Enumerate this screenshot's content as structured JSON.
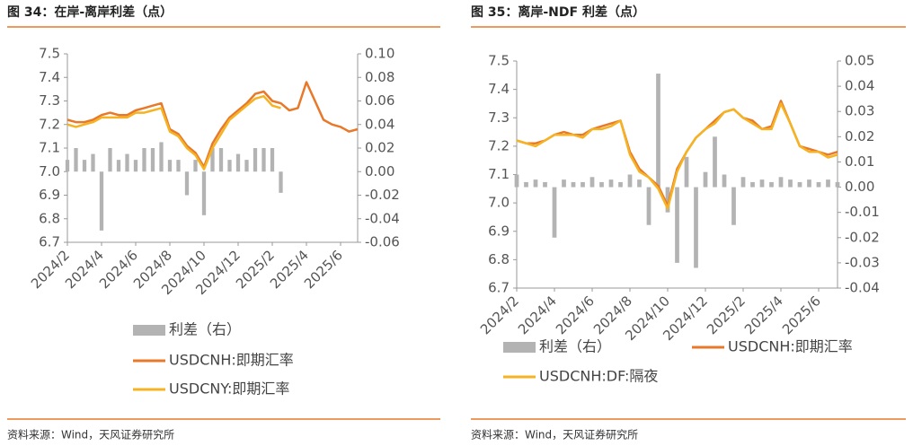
{
  "chart_data": [
    {
      "type": "line",
      "title": "图 34：在岸-离岸利差（点）",
      "source": "资料来源：Wind，天风证券研究所",
      "categories": [
        "2024/2",
        null,
        null,
        null,
        "2024/4",
        null,
        null,
        null,
        "2024/6",
        null,
        null,
        null,
        "2024/8",
        null,
        null,
        null,
        "2024/10",
        null,
        null,
        null,
        "2024/12",
        null,
        null,
        null,
        "2025/2",
        null,
        null,
        null,
        "2025/4",
        null,
        null,
        null,
        "2025/6",
        null,
        null
      ],
      "ylim": [
        6.7,
        7.5
      ],
      "yticks": [
        6.7,
        6.8,
        6.9,
        {
          "value": 7.0,
          "label": "7.0"
        },
        7.1,
        7.2,
        7.3,
        7.4,
        7.5
      ],
      "y2lim": [
        -0.06,
        0.1
      ],
      "y2ticks": [
        -0.06,
        -0.04,
        -0.02,
        {
          "value": 0.0,
          "label": "0.00"
        },
        0.02,
        0.04,
        0.06,
        0.08,
        {
          "value": 0.1,
          "label": "0.10"
        }
      ],
      "series": [
        {
          "name": "利差（右）",
          "type": "bar",
          "axis": "y2",
          "color": "#b3b3b3",
          "values": [
            0.01,
            0.02,
            0.01,
            0.015,
            -0.05,
            0.02,
            0.01,
            0.015,
            0.01,
            0.02,
            0.02,
            0.025,
            0.01,
            0.01,
            -0.02,
            0.01,
            -0.037,
            0.02,
            0.02,
            0.01,
            0.015,
            0.01,
            0.02,
            0.02,
            0.02,
            -0.018,
            null,
            null,
            null,
            null,
            null,
            null,
            null,
            null,
            null
          ]
        },
        {
          "name": "USDCNH:即期汇率",
          "type": "line",
          "color": "#e8782a",
          "values": [
            7.22,
            7.21,
            7.21,
            7.22,
            7.24,
            7.25,
            7.24,
            7.24,
            7.26,
            7.27,
            7.28,
            7.29,
            7.18,
            7.16,
            7.11,
            7.08,
            7.02,
            7.12,
            7.18,
            7.23,
            7.26,
            7.29,
            7.33,
            7.34,
            7.3,
            7.29,
            7.26,
            7.27,
            7.38,
            7.3,
            7.22,
            7.2,
            7.19,
            7.17,
            7.18
          ]
        },
        {
          "name": "USDCNY:即期汇率",
          "type": "line",
          "color": "#f5b323",
          "values": [
            7.2,
            7.19,
            7.2,
            7.21,
            7.23,
            7.23,
            7.23,
            7.23,
            7.25,
            7.25,
            7.26,
            7.27,
            7.17,
            7.15,
            7.1,
            7.07,
            7.01,
            7.1,
            7.16,
            7.22,
            7.25,
            7.28,
            7.31,
            7.32,
            7.28,
            7.27,
            null,
            null,
            null,
            null,
            null,
            null,
            null,
            null,
            null
          ]
        }
      ]
    },
    {
      "type": "line",
      "title": "图 35：离岸-NDF 利差（点）",
      "source": "资料来源：Wind，天风证券研究所",
      "categories": [
        "2024/2",
        null,
        null,
        null,
        "2024/4",
        null,
        null,
        null,
        "2024/6",
        null,
        null,
        null,
        "2024/8",
        null,
        null,
        null,
        "2024/10",
        null,
        null,
        null,
        "2024/12",
        null,
        null,
        null,
        "2025/2",
        null,
        null,
        null,
        "2025/4",
        null,
        null,
        null,
        "2025/6",
        null,
        null
      ],
      "ylim": [
        6.7,
        7.5
      ],
      "yticks": [
        6.7,
        6.8,
        6.9,
        {
          "value": 7.0,
          "label": "7.0"
        },
        7.1,
        7.2,
        7.3,
        7.4,
        7.5
      ],
      "y2lim": [
        -0.04,
        0.05
      ],
      "y2ticks": [
        -0.04,
        -0.03,
        -0.02,
        -0.01,
        {
          "value": 0.0,
          "label": "0.00"
        },
        0.01,
        0.02,
        0.03,
        0.04,
        0.05
      ],
      "series": [
        {
          "name": "利差（右）",
          "type": "bar",
          "axis": "y2",
          "color": "#b3b3b3",
          "values": [
            0.005,
            0.002,
            0.003,
            0.002,
            -0.02,
            0.003,
            0.002,
            0.002,
            0.004,
            0.002,
            0.003,
            0.002,
            0.005,
            0.003,
            -0.015,
            0.045,
            -0.01,
            -0.03,
            0.012,
            -0.032,
            0.006,
            0.02,
            0.005,
            -0.015,
            0.004,
            0.002,
            0.003,
            0.002,
            0.004,
            0.003,
            0.002,
            0.003,
            0.002,
            0.003,
            0.002
          ]
        },
        {
          "name": "USDCNH:即期汇率",
          "type": "line",
          "color": "#e8782a",
          "values": [
            7.22,
            7.21,
            7.21,
            7.22,
            7.24,
            7.25,
            7.24,
            7.24,
            7.26,
            7.27,
            7.28,
            7.29,
            7.18,
            7.12,
            7.09,
            7.06,
            6.99,
            7.12,
            7.18,
            7.23,
            7.26,
            7.29,
            7.32,
            7.33,
            7.3,
            7.29,
            7.26,
            7.27,
            7.36,
            7.28,
            7.2,
            7.19,
            7.18,
            7.17,
            7.18
          ]
        },
        {
          "name": "USDCNH:DF:隔夜",
          "type": "line",
          "color": "#f5b323",
          "values": [
            7.22,
            7.21,
            7.2,
            7.22,
            7.24,
            7.24,
            7.24,
            7.23,
            7.26,
            7.26,
            7.27,
            7.29,
            7.17,
            7.11,
            7.09,
            7.05,
            6.98,
            7.11,
            7.18,
            7.23,
            7.26,
            7.28,
            7.32,
            7.33,
            7.3,
            7.28,
            7.26,
            7.26,
            7.35,
            7.28,
            7.2,
            7.18,
            7.18,
            7.16,
            7.17
          ]
        }
      ]
    }
  ]
}
